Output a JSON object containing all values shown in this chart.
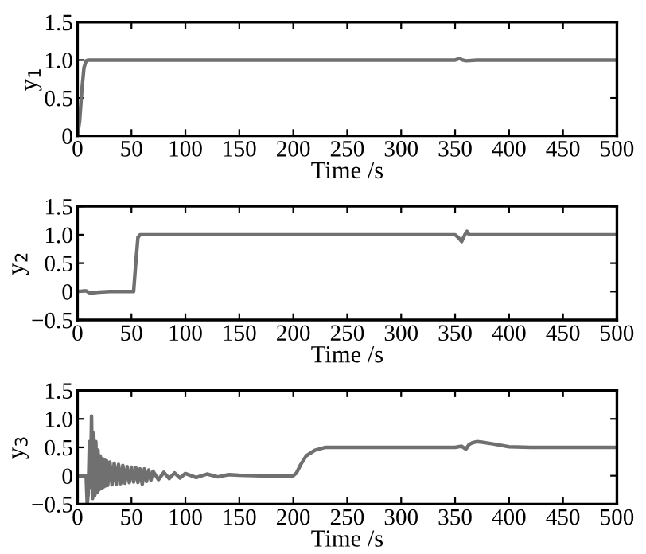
{
  "chart_data": [
    {
      "type": "line",
      "xlabel": "Time /s",
      "ylabel": "y$_{1}$",
      "xlim": [
        0,
        500
      ],
      "ylim": [
        0,
        1.5
      ],
      "xticks": [
        0,
        50,
        100,
        150,
        200,
        250,
        300,
        350,
        400,
        450,
        500
      ],
      "yticks": [
        0,
        {
          "value": 0.5,
          "label": "0.5"
        },
        {
          "value": 1,
          "label": "1.0"
        },
        {
          "value": 1.5,
          "label": "1.5"
        }
      ],
      "grid": false,
      "tick_labels": "xy",
      "series": [
        {
          "color": "#707070",
          "x": [
            0,
            2,
            4,
            6,
            8,
            10,
            20,
            100,
            300,
            350,
            354,
            357,
            360,
            370,
            500
          ],
          "values": [
            0,
            0.2,
            0.6,
            0.9,
            0.99,
            1.0,
            1.0,
            1.0,
            1.0,
            1.0,
            1.02,
            1.0,
            0.99,
            1.0,
            1.0
          ]
        }
      ]
    },
    {
      "type": "line",
      "xlabel": "Time /s",
      "ylabel": "y$_{2}$",
      "xlim": [
        0,
        500
      ],
      "ylim": [
        -0.5,
        1.5
      ],
      "xticks": [
        0,
        50,
        100,
        150,
        200,
        250,
        300,
        350,
        400,
        450,
        500
      ],
      "yticks": [
        {
          "value": -0.5,
          "label": "−0.5"
        },
        0,
        {
          "value": 0.5,
          "label": "0.5"
        },
        {
          "value": 1,
          "label": "1.0"
        },
        {
          "value": 1.5,
          "label": "1.5"
        }
      ],
      "grid": false,
      "series": [
        {
          "color": "#707070",
          "x": [
            0,
            5,
            8,
            10,
            12,
            15,
            20,
            30,
            52,
            54,
            56,
            58,
            60,
            100,
            300,
            350,
            353,
            356,
            359,
            361,
            363,
            366,
            400,
            500
          ],
          "values": [
            0,
            0.01,
            0.01,
            -0.01,
            -0.03,
            -0.02,
            -0.01,
            0,
            0,
            0.5,
            0.95,
            1.0,
            1.0,
            1.0,
            1.0,
            1.0,
            0.95,
            0.88,
            1.0,
            1.06,
            1.0,
            1.0,
            1.0,
            1.0
          ]
        }
      ]
    },
    {
      "type": "line",
      "xlabel": "Time /s",
      "ylabel": "y$_{3}$",
      "xlim": [
        0,
        500
      ],
      "ylim": [
        -0.5,
        1.5
      ],
      "xticks": [
        0,
        50,
        100,
        150,
        200,
        250,
        300,
        350,
        400,
        450,
        500
      ],
      "yticks": [
        {
          "value": -0.5,
          "label": "−0.5"
        },
        0,
        {
          "value": 0.5,
          "label": "0.5"
        },
        {
          "value": 1,
          "label": "1.0"
        },
        {
          "value": 1.5,
          "label": "1.5"
        }
      ],
      "grid": false,
      "series": [
        {
          "color": "#707070",
          "x": [
            0,
            8,
            9,
            10,
            11,
            12,
            13,
            14,
            15,
            16,
            17,
            18,
            19,
            20,
            21,
            22,
            23,
            24,
            25,
            26,
            27,
            28,
            30,
            32,
            34,
            36,
            38,
            40,
            42,
            44,
            46,
            48,
            50,
            52,
            54,
            56,
            58,
            60,
            62,
            64,
            66,
            68,
            70,
            75,
            80,
            85,
            90,
            95,
            100,
            110,
            120,
            130,
            140,
            150,
            170,
            200,
            203,
            207,
            212,
            220,
            230,
            240,
            300,
            350,
            356,
            360,
            363,
            366,
            370,
            375,
            385,
            400,
            420,
            500
          ],
          "values": [
            0,
            0,
            -0.5,
            -0.3,
            0.6,
            -0.2,
            1.05,
            -0.4,
            0.75,
            -0.35,
            0.6,
            -0.3,
            0.45,
            -0.25,
            0.35,
            -0.22,
            0.3,
            -0.2,
            0.28,
            -0.18,
            0.26,
            -0.17,
            0.24,
            -0.16,
            0.22,
            -0.15,
            0.2,
            -0.14,
            0.18,
            -0.13,
            0.16,
            -0.12,
            0.15,
            -0.11,
            0.14,
            -0.12,
            0.12,
            -0.15,
            0.12,
            -0.1,
            0.1,
            -0.08,
            0.08,
            -0.07,
            0.06,
            -0.05,
            0.05,
            -0.04,
            0.04,
            -0.03,
            0.03,
            -0.02,
            0.02,
            0.01,
            0.0,
            0.0,
            0.05,
            0.2,
            0.35,
            0.45,
            0.5,
            0.5,
            0.5,
            0.5,
            0.52,
            0.47,
            0.55,
            0.58,
            0.6,
            0.59,
            0.56,
            0.51,
            0.5,
            0.5
          ]
        }
      ]
    }
  ]
}
